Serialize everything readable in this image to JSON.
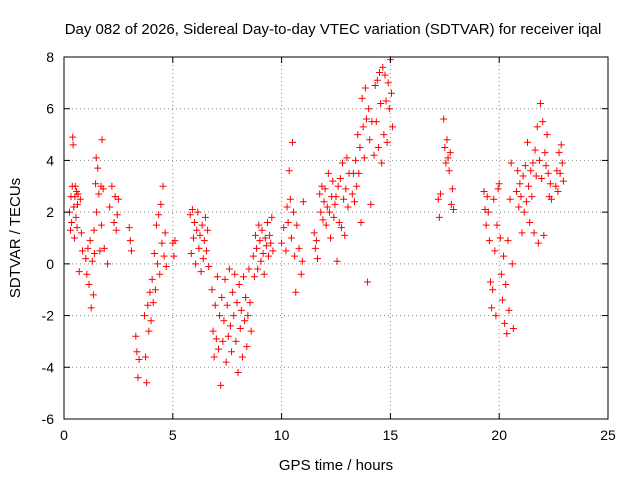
{
  "chart_data": {
    "type": "scatter",
    "title": "Day 082 of 2026, Sidereal Day-to-day VTEC variation (SDTVAR) for receiver iqal",
    "xlabel": "GPS time / hours",
    "ylabel": "SDTVAR / TECUs",
    "xlim": [
      0,
      25
    ],
    "ylim": [
      -6,
      8
    ],
    "xticks": [
      0,
      5,
      10,
      15,
      20,
      25
    ],
    "yticks": [
      -6,
      -4,
      -2,
      0,
      2,
      4,
      6,
      8
    ],
    "grid": true,
    "marker": "+",
    "color": "#ff0000",
    "series": [
      {
        "name": "SDTVAR",
        "points": [
          [
            0.25,
            2.0
          ],
          [
            0.3,
            1.3
          ],
          [
            0.32,
            2.6
          ],
          [
            0.35,
            1.6
          ],
          [
            0.38,
            3.0
          ],
          [
            0.4,
            4.9
          ],
          [
            0.42,
            4.6
          ],
          [
            0.45,
            2.2
          ],
          [
            0.48,
            1.0
          ],
          [
            0.5,
            2.6
          ],
          [
            0.52,
            3.0
          ],
          [
            0.55,
            1.8
          ],
          [
            0.58,
            2.8
          ],
          [
            0.6,
            1.4
          ],
          [
            0.62,
            2.3
          ],
          [
            0.65,
            2.7
          ],
          [
            0.7,
            -0.3
          ],
          [
            0.75,
            2.5
          ],
          [
            0.8,
            1.2
          ],
          [
            0.85,
            0.5
          ],
          [
            1.0,
            0.2
          ],
          [
            1.05,
            -0.4
          ],
          [
            1.1,
            0.6
          ],
          [
            1.15,
            -0.8
          ],
          [
            1.2,
            0.9
          ],
          [
            1.25,
            -1.7
          ],
          [
            1.3,
            0.1
          ],
          [
            1.35,
            -1.2
          ],
          [
            1.38,
            1.3
          ],
          [
            1.4,
            0.4
          ],
          [
            1.45,
            3.1
          ],
          [
            1.48,
            4.1
          ],
          [
            1.5,
            2.0
          ],
          [
            1.55,
            3.7
          ],
          [
            1.6,
            2.7
          ],
          [
            1.65,
            0.5
          ],
          [
            1.7,
            3.0
          ],
          [
            1.72,
            1.5
          ],
          [
            1.75,
            4.8
          ],
          [
            1.8,
            2.9
          ],
          [
            1.85,
            0.6
          ],
          [
            2.0,
            0.0
          ],
          [
            2.1,
            2.2
          ],
          [
            2.2,
            3.0
          ],
          [
            2.3,
            1.6
          ],
          [
            2.35,
            2.6
          ],
          [
            2.4,
            1.3
          ],
          [
            2.45,
            1.9
          ],
          [
            2.5,
            2.5
          ],
          [
            3.0,
            1.4
          ],
          [
            3.05,
            0.9
          ],
          [
            3.1,
            0.5
          ],
          [
            3.3,
            -2.8
          ],
          [
            3.35,
            -3.4
          ],
          [
            3.4,
            -4.4
          ],
          [
            3.45,
            -3.7
          ],
          [
            3.7,
            -2.0
          ],
          [
            3.75,
            -3.6
          ],
          [
            3.8,
            -4.6
          ],
          [
            3.85,
            -1.6
          ],
          [
            3.9,
            -2.6
          ],
          [
            3.95,
            -1.1
          ],
          [
            4.0,
            -2.2
          ],
          [
            4.05,
            -0.6
          ],
          [
            4.1,
            -1.5
          ],
          [
            4.15,
            0.4
          ],
          [
            4.2,
            -1.0
          ],
          [
            4.25,
            1.5
          ],
          [
            4.3,
            0.0
          ],
          [
            4.35,
            1.9
          ],
          [
            4.4,
            -0.4
          ],
          [
            4.45,
            2.3
          ],
          [
            4.5,
            0.8
          ],
          [
            4.55,
            3.0
          ],
          [
            4.6,
            0.3
          ],
          [
            4.65,
            1.2
          ],
          [
            4.7,
            -0.1
          ],
          [
            5.0,
            0.8
          ],
          [
            5.05,
            0.3
          ],
          [
            5.1,
            0.9
          ],
          [
            5.8,
            1.9
          ],
          [
            5.85,
            0.4
          ],
          [
            5.9,
            2.1
          ],
          [
            5.95,
            1.0
          ],
          [
            6.0,
            1.6
          ],
          [
            6.05,
            0.0
          ],
          [
            6.1,
            1.3
          ],
          [
            6.15,
            2.0
          ],
          [
            6.2,
            0.6
          ],
          [
            6.25,
            1.1
          ],
          [
            6.3,
            -0.3
          ],
          [
            6.35,
            1.5
          ],
          [
            6.4,
            0.2
          ],
          [
            6.45,
            0.9
          ],
          [
            6.5,
            1.8
          ],
          [
            6.55,
            0.5
          ],
          [
            6.6,
            1.3
          ],
          [
            6.65,
            -0.1
          ],
          [
            6.8,
            -1.0
          ],
          [
            6.85,
            -2.6
          ],
          [
            6.9,
            -3.6
          ],
          [
            6.95,
            -1.6
          ],
          [
            7.0,
            -2.9
          ],
          [
            7.05,
            -0.5
          ],
          [
            7.1,
            -3.3
          ],
          [
            7.15,
            -2.0
          ],
          [
            7.2,
            -4.7
          ],
          [
            7.25,
            -1.3
          ],
          [
            7.3,
            -3.0
          ],
          [
            7.35,
            -2.2
          ],
          [
            7.4,
            -0.6
          ],
          [
            7.45,
            -3.8
          ],
          [
            7.5,
            -1.6
          ],
          [
            7.55,
            -2.8
          ],
          [
            7.6,
            -0.2
          ],
          [
            7.65,
            -2.4
          ],
          [
            7.7,
            -3.4
          ],
          [
            7.75,
            -1.1
          ],
          [
            7.8,
            -2.0
          ],
          [
            7.85,
            -0.4
          ],
          [
            7.9,
            -3.0
          ],
          [
            7.95,
            -1.5
          ],
          [
            8.0,
            -4.2
          ],
          [
            8.05,
            -0.8
          ],
          [
            8.1,
            -2.5
          ],
          [
            8.15,
            -1.8
          ],
          [
            8.2,
            -3.6
          ],
          [
            8.25,
            -0.5
          ],
          [
            8.3,
            -2.2
          ],
          [
            8.35,
            -1.3
          ],
          [
            8.4,
            -3.2
          ],
          [
            8.45,
            -2.0
          ],
          [
            8.5,
            -0.2
          ],
          [
            8.55,
            -1.5
          ],
          [
            8.6,
            -2.6
          ],
          [
            8.7,
            0.3
          ],
          [
            8.75,
            -0.5
          ],
          [
            8.8,
            1.1
          ],
          [
            8.85,
            0.6
          ],
          [
            8.9,
            -0.2
          ],
          [
            8.95,
            1.5
          ],
          [
            9.0,
            0.9
          ],
          [
            9.05,
            0.1
          ],
          [
            9.1,
            1.3
          ],
          [
            9.15,
            0.4
          ],
          [
            9.2,
            -0.4
          ],
          [
            9.25,
            1.0
          ],
          [
            9.3,
            0.7
          ],
          [
            9.35,
            1.6
          ],
          [
            9.4,
            0.3
          ],
          [
            9.45,
            1.1
          ],
          [
            9.5,
            0.8
          ],
          [
            9.55,
            1.8
          ],
          [
            9.6,
            0.5
          ],
          [
            10.0,
            0.8
          ],
          [
            10.1,
            1.4
          ],
          [
            10.2,
            0.5
          ],
          [
            10.25,
            2.2
          ],
          [
            10.3,
            1.6
          ],
          [
            10.35,
            3.6
          ],
          [
            10.4,
            2.5
          ],
          [
            10.45,
            1.0
          ],
          [
            10.5,
            4.7
          ],
          [
            10.55,
            2.0
          ],
          [
            10.6,
            0.3
          ],
          [
            10.65,
            -1.1
          ],
          [
            10.7,
            1.5
          ],
          [
            10.8,
            0.6
          ],
          [
            10.9,
            -0.4
          ],
          [
            10.95,
            0.1
          ],
          [
            11.0,
            2.4
          ],
          [
            11.5,
            1.2
          ],
          [
            11.55,
            0.6
          ],
          [
            11.6,
            0.9
          ],
          [
            11.65,
            0.2
          ],
          [
            11.75,
            2.7
          ],
          [
            11.8,
            2.0
          ],
          [
            11.85,
            3.0
          ],
          [
            11.9,
            1.7
          ],
          [
            11.95,
            2.4
          ],
          [
            12.0,
            2.9
          ],
          [
            12.05,
            1.5
          ],
          [
            12.1,
            2.2
          ],
          [
            12.15,
            3.5
          ],
          [
            12.2,
            2.0
          ],
          [
            12.25,
            1.0
          ],
          [
            12.3,
            2.6
          ],
          [
            12.35,
            3.2
          ],
          [
            12.4,
            1.8
          ],
          [
            12.45,
            2.3
          ],
          [
            12.5,
            2.6
          ],
          [
            12.55,
            0.1
          ],
          [
            12.6,
            3.0
          ],
          [
            12.65,
            1.6
          ],
          [
            12.7,
            3.3
          ],
          [
            12.75,
            1.4
          ],
          [
            12.8,
            3.9
          ],
          [
            12.85,
            2.5
          ],
          [
            12.9,
            1.1
          ],
          [
            12.95,
            2.9
          ],
          [
            13.0,
            4.1
          ],
          [
            13.05,
            2.2
          ],
          [
            13.1,
            3.5
          ],
          [
            13.25,
            2.7
          ],
          [
            13.3,
            3.5
          ],
          [
            13.35,
            2.4
          ],
          [
            13.4,
            4.0
          ],
          [
            13.45,
            3.0
          ],
          [
            13.5,
            5.0
          ],
          [
            13.55,
            3.5
          ],
          [
            13.6,
            4.5
          ],
          [
            13.65,
            1.6
          ],
          [
            13.7,
            6.4
          ],
          [
            13.75,
            5.3
          ],
          [
            13.8,
            4.1
          ],
          [
            13.85,
            6.8
          ],
          [
            13.9,
            5.6
          ],
          [
            13.95,
            -0.7
          ],
          [
            14.0,
            6.0
          ],
          [
            14.05,
            4.8
          ],
          [
            14.1,
            2.3
          ],
          [
            14.15,
            5.5
          ],
          [
            14.25,
            4.2
          ],
          [
            14.3,
            6.9
          ],
          [
            14.35,
            5.5
          ],
          [
            14.4,
            7.1
          ],
          [
            14.45,
            4.5
          ],
          [
            14.5,
            7.4
          ],
          [
            14.55,
            6.2
          ],
          [
            14.6,
            3.9
          ],
          [
            14.65,
            7.6
          ],
          [
            14.7,
            5.0
          ],
          [
            14.75,
            7.3
          ],
          [
            14.8,
            6.3
          ],
          [
            14.85,
            4.7
          ],
          [
            14.9,
            7.0
          ],
          [
            14.95,
            6.0
          ],
          [
            15.0,
            7.9
          ],
          [
            15.05,
            6.6
          ],
          [
            15.1,
            5.3
          ],
          [
            17.2,
            2.5
          ],
          [
            17.25,
            1.8
          ],
          [
            17.3,
            2.7
          ],
          [
            17.45,
            5.6
          ],
          [
            17.5,
            4.5
          ],
          [
            17.55,
            3.9
          ],
          [
            17.6,
            4.8
          ],
          [
            17.65,
            4.1
          ],
          [
            17.7,
            3.6
          ],
          [
            17.75,
            4.3
          ],
          [
            17.8,
            2.3
          ],
          [
            17.85,
            2.9
          ],
          [
            17.9,
            2.1
          ],
          [
            19.3,
            2.8
          ],
          [
            19.35,
            2.1
          ],
          [
            19.4,
            1.5
          ],
          [
            19.45,
            2.6
          ],
          [
            19.5,
            2.0
          ],
          [
            19.55,
            0.9
          ],
          [
            19.6,
            -0.7
          ],
          [
            19.65,
            -1.7
          ],
          [
            19.7,
            -1.0
          ],
          [
            19.75,
            2.5
          ],
          [
            19.8,
            0.5
          ],
          [
            19.85,
            -2.0
          ],
          [
            19.9,
            1.5
          ],
          [
            19.95,
            2.9
          ],
          [
            20.0,
            3.1
          ],
          [
            20.05,
            1.0
          ],
          [
            20.1,
            -0.4
          ],
          [
            20.15,
            -1.4
          ],
          [
            20.2,
            0.3
          ],
          [
            20.25,
            -2.3
          ],
          [
            20.3,
            -0.8
          ],
          [
            20.35,
            -2.7
          ],
          [
            20.4,
            0.9
          ],
          [
            20.45,
            -1.8
          ],
          [
            20.5,
            2.5
          ],
          [
            20.55,
            3.9
          ],
          [
            20.6,
            0.0
          ],
          [
            20.65,
            -2.5
          ],
          [
            20.8,
            2.8
          ],
          [
            20.85,
            3.6
          ],
          [
            20.9,
            2.2
          ],
          [
            20.95,
            3.1
          ],
          [
            21.0,
            2.6
          ],
          [
            21.05,
            1.2
          ],
          [
            21.1,
            3.4
          ],
          [
            21.15,
            2.0
          ],
          [
            21.2,
            3.8
          ],
          [
            21.25,
            2.4
          ],
          [
            21.3,
            4.7
          ],
          [
            21.35,
            3.0
          ],
          [
            21.4,
            1.6
          ],
          [
            21.45,
            3.6
          ],
          [
            21.5,
            2.6
          ],
          [
            21.55,
            3.9
          ],
          [
            21.6,
            1.2
          ],
          [
            21.65,
            4.4
          ],
          [
            21.7,
            3.4
          ],
          [
            21.75,
            5.3
          ],
          [
            21.8,
            0.8
          ],
          [
            21.85,
            4.0
          ],
          [
            21.9,
            6.2
          ],
          [
            21.95,
            3.3
          ],
          [
            22.0,
            5.5
          ],
          [
            22.05,
            1.1
          ],
          [
            22.1,
            4.3
          ],
          [
            22.15,
            3.8
          ],
          [
            22.2,
            5.0
          ],
          [
            22.25,
            3.5
          ],
          [
            22.3,
            2.6
          ],
          [
            22.35,
            3.1
          ],
          [
            22.4,
            2.5
          ],
          [
            22.6,
            3.0
          ],
          [
            22.65,
            3.6
          ],
          [
            22.7,
            2.8
          ],
          [
            22.75,
            4.3
          ],
          [
            22.8,
            3.5
          ],
          [
            22.85,
            4.6
          ],
          [
            22.9,
            3.9
          ],
          [
            22.95,
            3.2
          ]
        ]
      }
    ]
  }
}
